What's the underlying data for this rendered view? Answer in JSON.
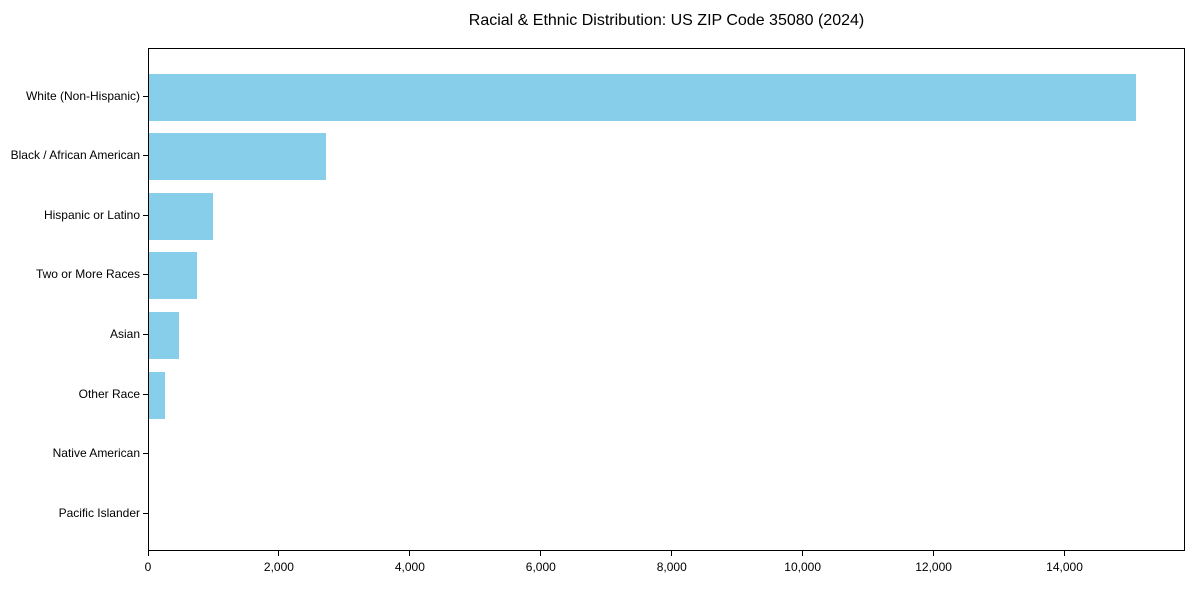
{
  "chart_data": {
    "type": "bar",
    "orientation": "horizontal",
    "title": "Racial & Ethnic Distribution: US ZIP Code 35080 (2024)",
    "categories": [
      "White (Non-Hispanic)",
      "Black / African American",
      "Hispanic or Latino",
      "Two or More Races",
      "Asian",
      "Other Race",
      "Native American",
      "Pacific Islander"
    ],
    "values": [
      15080,
      2700,
      970,
      740,
      465,
      240,
      0,
      0
    ],
    "xlabel": "",
    "ylabel": "",
    "xlim": [
      0,
      15840
    ],
    "xticks": [
      0,
      2000,
      4000,
      6000,
      8000,
      10000,
      12000,
      14000
    ],
    "xtick_labels": [
      "0",
      "2,000",
      "4,000",
      "6,000",
      "8,000",
      "10,000",
      "12,000",
      "14,000"
    ],
    "bar_color": "#87CEEB",
    "axis_color": "#000000",
    "text_color": "#000000",
    "background_color": "#FFFFFF",
    "grid": false,
    "legend": "none"
  }
}
